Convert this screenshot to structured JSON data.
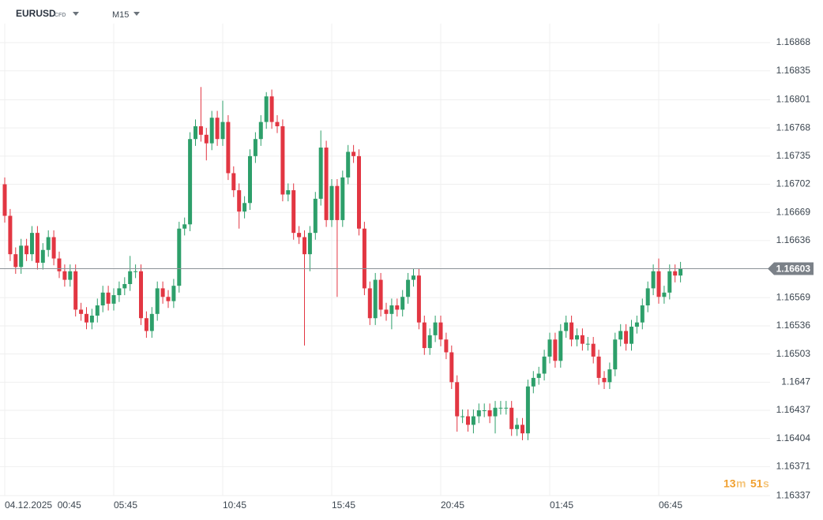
{
  "chart_data": {
    "type": "candlestick",
    "symbol": "EURUSD",
    "symbol_tag": "CFD",
    "timeframe": "M15",
    "up_color": "#2d9f6a",
    "down_color": "#e23642",
    "grid": true,
    "current_price": 1.16603,
    "countdown": {
      "minutes": 13,
      "minutes_unit": "m",
      "seconds": 51,
      "seconds_unit": "s"
    },
    "ylim": [
      1.16326,
      1.16918
    ],
    "yticks": [
      1.16868,
      1.16835,
      1.16801,
      1.16768,
      1.16735,
      1.16702,
      1.16669,
      1.16636,
      1.16569,
      1.16536,
      1.16503,
      1.1647,
      1.16437,
      1.16404,
      1.16371,
      1.16337
    ],
    "xticks": [
      {
        "value": 0,
        "label": "04.12.2025  00:45"
      },
      {
        "value": 20,
        "label": "05:45"
      },
      {
        "value": 40,
        "label": "10:45"
      },
      {
        "value": 60,
        "label": "15:45"
      },
      {
        "value": 80,
        "label": "20:45"
      },
      {
        "value": 100,
        "label": "01:45"
      },
      {
        "value": 120,
        "label": "06:45"
      }
    ],
    "open": [
      1.16702,
      1.16665,
      1.1662,
      1.16605,
      1.1663,
      1.1662,
      1.16645,
      1.1661,
      1.16625,
      1.1664,
      1.16615,
      1.166,
      1.1659,
      1.166,
      1.16555,
      1.1655,
      1.1654,
      1.16548,
      1.1656,
      1.16575,
      1.16562,
      1.16572,
      1.1658,
      1.16585,
      1.166,
      1.166,
      1.16545,
      1.1653,
      1.1655,
      1.1658,
      1.1657,
      1.16565,
      1.16583,
      1.1665,
      1.16655,
      1.16755,
      1.1677,
      1.1676,
      1.1675,
      1.1678,
      1.16755,
      1.16775,
      1.16715,
      1.16695,
      1.1667,
      1.1668,
      1.16735,
      1.16755,
      1.16775,
      1.16805,
      1.16775,
      1.1677,
      1.1669,
      1.16695,
      1.16645,
      1.1664,
      1.1662,
      1.16645,
      1.16685,
      1.16745,
      1.1666,
      1.167,
      1.1666,
      1.1671,
      1.1674,
      1.16735,
      1.1665,
      1.1658,
      1.16545,
      1.1659,
      1.16555,
      1.1655,
      1.1656,
      1.16555,
      1.1657,
      1.1659,
      1.16595,
      1.1654,
      1.1651,
      1.16525,
      1.1654,
      1.1652,
      1.16505,
      1.1647,
      1.1643,
      1.1643,
      1.1642,
      1.1643,
      1.16437,
      1.16437,
      1.1643,
      1.1644,
      1.1644,
      1.1644,
      1.16415,
      1.1642,
      1.1641,
      1.16465,
      1.16475,
      1.1648,
      1.165,
      1.1652,
      1.16495,
      1.1653,
      1.1654,
      1.1652,
      1.16525,
      1.16515,
      1.16515,
      1.165,
      1.16475,
      1.1647,
      1.16485,
      1.1652,
      1.1653,
      1.16515,
      1.16535,
      1.1654,
      1.1656,
      1.1658,
      1.166,
      1.1657,
      1.16575,
      1.166,
      1.16595
    ],
    "high": [
      1.1671,
      1.16673,
      1.16628,
      1.16638,
      1.16638,
      1.16653,
      1.16653,
      1.16633,
      1.16648,
      1.16648,
      1.16623,
      1.16608,
      1.16608,
      1.16608,
      1.16563,
      1.16558,
      1.16556,
      1.16568,
      1.16583,
      1.16583,
      1.1658,
      1.16588,
      1.16593,
      1.16618,
      1.16608,
      1.16608,
      1.16553,
      1.16558,
      1.16588,
      1.16588,
      1.16578,
      1.16591,
      1.16658,
      1.16663,
      1.16763,
      1.16778,
      1.16816,
      1.16768,
      1.16788,
      1.16788,
      1.168,
      1.16783,
      1.16723,
      1.16703,
      1.16688,
      1.16743,
      1.16763,
      1.16783,
      1.1681,
      1.16813,
      1.16783,
      1.16778,
      1.16703,
      1.16703,
      1.16653,
      1.16648,
      1.16653,
      1.16693,
      1.16765,
      1.16753,
      1.16708,
      1.16708,
      1.16718,
      1.16748,
      1.16748,
      1.16743,
      1.16658,
      1.16588,
      1.16598,
      1.16598,
      1.16563,
      1.16568,
      1.16568,
      1.16578,
      1.16598,
      1.16603,
      1.16603,
      1.16548,
      1.16533,
      1.16548,
      1.16548,
      1.16528,
      1.16513,
      1.16478,
      1.16438,
      1.16438,
      1.16438,
      1.16445,
      1.16445,
      1.16445,
      1.16448,
      1.16448,
      1.16448,
      1.16448,
      1.16428,
      1.16428,
      1.16473,
      1.16483,
      1.16488,
      1.16508,
      1.16528,
      1.16528,
      1.16538,
      1.16548,
      1.16548,
      1.16533,
      1.16533,
      1.16523,
      1.16523,
      1.16508,
      1.16483,
      1.16493,
      1.16528,
      1.16538,
      1.16538,
      1.16543,
      1.16548,
      1.16568,
      1.16588,
      1.16608,
      1.16615,
      1.16583,
      1.16608,
      1.16608,
      1.16611
    ],
    "low": [
      1.16657,
      1.16612,
      1.16597,
      1.16597,
      1.16612,
      1.16612,
      1.16602,
      1.16602,
      1.16617,
      1.16607,
      1.16592,
      1.16582,
      1.16582,
      1.16547,
      1.16542,
      1.16532,
      1.16532,
      1.1654,
      1.16552,
      1.16554,
      1.16554,
      1.16564,
      1.16572,
      1.16577,
      1.16592,
      1.16537,
      1.16522,
      1.16522,
      1.16542,
      1.16562,
      1.16557,
      1.16557,
      1.16575,
      1.16642,
      1.16647,
      1.16747,
      1.16752,
      1.1673,
      1.16742,
      1.16747,
      1.16747,
      1.16707,
      1.16687,
      1.1665,
      1.16662,
      1.16672,
      1.16727,
      1.16747,
      1.16767,
      1.16767,
      1.16762,
      1.16682,
      1.16682,
      1.16637,
      1.16632,
      1.16513,
      1.166,
      1.16637,
      1.16677,
      1.16652,
      1.16652,
      1.1657,
      1.16652,
      1.16702,
      1.16727,
      1.16642,
      1.16572,
      1.16537,
      1.16537,
      1.16547,
      1.16542,
      1.16532,
      1.16547,
      1.16547,
      1.16562,
      1.16582,
      1.16532,
      1.16502,
      1.16502,
      1.16517,
      1.16512,
      1.16497,
      1.16462,
      1.16412,
      1.16422,
      1.16412,
      1.1641,
      1.16422,
      1.16429,
      1.16422,
      1.1641,
      1.16432,
      1.16432,
      1.16407,
      1.16407,
      1.16402,
      1.16402,
      1.16457,
      1.16467,
      1.16472,
      1.16492,
      1.16487,
      1.16487,
      1.16522,
      1.16512,
      1.16512,
      1.16507,
      1.16507,
      1.16492,
      1.16467,
      1.16462,
      1.16462,
      1.16477,
      1.16512,
      1.16507,
      1.16507,
      1.16527,
      1.16532,
      1.16552,
      1.16572,
      1.16562,
      1.16562,
      1.16567,
      1.16587,
      1.16587
    ],
    "close": [
      1.16665,
      1.1662,
      1.16605,
      1.1663,
      1.1662,
      1.16645,
      1.1661,
      1.16625,
      1.1664,
      1.16615,
      1.166,
      1.1659,
      1.166,
      1.16555,
      1.1655,
      1.1654,
      1.16548,
      1.1656,
      1.16575,
      1.16562,
      1.16572,
      1.1658,
      1.16585,
      1.166,
      1.166,
      1.16545,
      1.1653,
      1.1655,
      1.1658,
      1.1657,
      1.16565,
      1.16583,
      1.1665,
      1.16655,
      1.16755,
      1.1677,
      1.1676,
      1.1675,
      1.1678,
      1.16755,
      1.16775,
      1.16715,
      1.16695,
      1.1667,
      1.1668,
      1.16735,
      1.16755,
      1.16775,
      1.16805,
      1.16775,
      1.1677,
      1.1669,
      1.16695,
      1.16645,
      1.1664,
      1.1662,
      1.16645,
      1.16685,
      1.16745,
      1.1666,
      1.167,
      1.1666,
      1.1671,
      1.1674,
      1.16735,
      1.1665,
      1.1658,
      1.16545,
      1.1659,
      1.16555,
      1.1655,
      1.1656,
      1.16555,
      1.1657,
      1.1659,
      1.16595,
      1.1654,
      1.1651,
      1.16525,
      1.1654,
      1.1652,
      1.16505,
      1.1647,
      1.1643,
      1.1643,
      1.1642,
      1.1643,
      1.16437,
      1.16437,
      1.1643,
      1.1644,
      1.1644,
      1.1644,
      1.16415,
      1.1642,
      1.1641,
      1.16465,
      1.16475,
      1.1648,
      1.165,
      1.1652,
      1.16495,
      1.1653,
      1.1654,
      1.1652,
      1.16525,
      1.16515,
      1.16515,
      1.165,
      1.16475,
      1.1647,
      1.16485,
      1.1652,
      1.1653,
      1.16515,
      1.16535,
      1.1654,
      1.1656,
      1.1658,
      1.166,
      1.1657,
      1.16575,
      1.166,
      1.16595,
      1.16603
    ]
  }
}
